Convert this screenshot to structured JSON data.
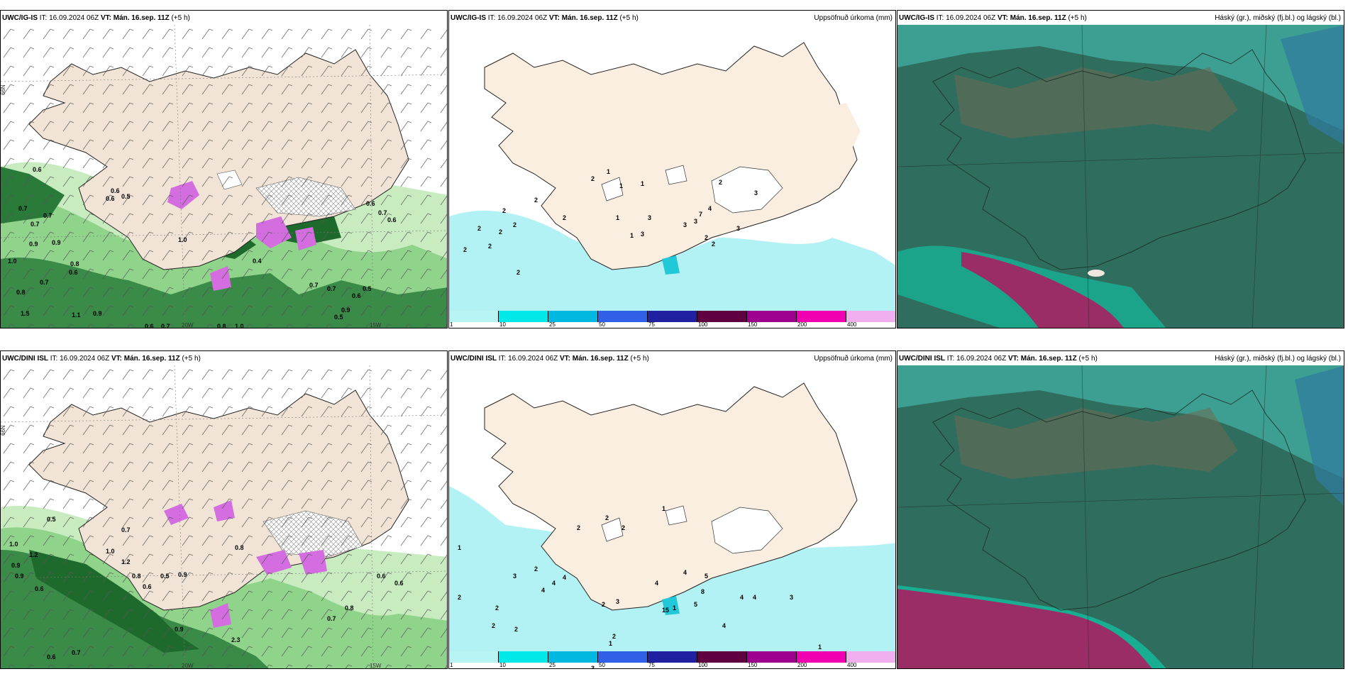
{
  "rows": [
    {
      "panels": [
        {
          "model": "UWC/IG-IS",
          "it_label": "IT:",
          "it": "16.09.2024 06Z",
          "vt_label": "VT:",
          "vt": "Mán. 16.sep. 11Z",
          "lead": "(+5 h)",
          "title": ""
        },
        {
          "model": "UWC/IG-IS",
          "it_label": "IT:",
          "it": "16.09.2024 06Z",
          "vt_label": "VT:",
          "vt": "Mán. 16.sep. 11Z",
          "lead": "(+5 h)",
          "title": "Uppsöfnuð úrkoma (mm)"
        },
        {
          "model": "UWC/IG-IS",
          "it_label": "IT:",
          "it": "16.09.2024 06Z",
          "vt_label": "VT:",
          "vt": "Mán. 16.sep. 11Z",
          "lead": "(+5 h)",
          "title": "Háský (gr.), miðský (fj.bl.) og lágský (bl.)"
        }
      ]
    },
    {
      "panels": [
        {
          "model": "UWC/DINI ISL",
          "it_label": "IT:",
          "it": "16.09.2024 06Z",
          "vt_label": "VT:",
          "vt": "Mán. 16.sep. 11Z",
          "lead": "(+5 h)",
          "title": ""
        },
        {
          "model": "UWC/DINI ISL",
          "it_label": "IT:",
          "it": "16.09.2024 06Z",
          "vt_label": "VT:",
          "vt": "Mán. 16.sep. 11Z",
          "lead": "(+5 h)",
          "title": "Uppsöfnuð úrkoma (mm)"
        },
        {
          "model": "UWC/DINI ISL",
          "it_label": "IT:",
          "it": "16.09.2024 06Z",
          "vt_label": "VT:",
          "vt": "Mán. 16.sep. 11Z",
          "lead": "(+5 h)",
          "title": "Háský (gr.), miðský (fj.bl.) og lágský (bl.)"
        }
      ]
    }
  ],
  "axis_labels": {
    "lat66": "66N",
    "lon20": "20W",
    "lon15": "15W"
  },
  "colorbar": {
    "ticks": [
      "1",
      "10",
      "25",
      "50",
      "75",
      "100",
      "150",
      "200",
      "400"
    ],
    "colors": [
      "#b8f4f4",
      "#00e8e8",
      "#00b8e0",
      "#3060e8",
      "#2020a0",
      "#600040",
      "#a00090",
      "#f000b0",
      "#f0b0f0"
    ]
  },
  "colors": {
    "land": "#f1e4d6",
    "precip_land": "#faeee0",
    "precip_sea": "#b3f2f4",
    "green_light": "#c8ecc0",
    "green_mid": "#6cc06a",
    "green_dark": "#1e6a2c",
    "magenta": "#d36de0",
    "cloud_base": "#2f6e5e",
    "cloud_teal": "#3ea89a",
    "cloud_brown": "#6b6a52",
    "cloud_pink": "#9a2c66",
    "cloud_cyan": "#10c8a8"
  },
  "labels": {
    "wind_top": [
      "0.6",
      "0.6",
      "0.6",
      "0.5",
      "0.7",
      "0.7",
      "1.0",
      "0.7",
      "0.9",
      "0.9",
      "0.8",
      "0.6",
      "0.7",
      "0.8",
      "1.0",
      "1.5",
      "1.1",
      "0.9",
      "0.6",
      "0.7",
      "0.8",
      "1.0",
      "0.9",
      "0.5",
      "0.4",
      "0.7",
      "0.6",
      "0.7",
      "0.6",
      "0.7",
      "0.6",
      "0.5"
    ],
    "precip_top": [
      "1",
      "1",
      "1",
      "2",
      "2",
      "2",
      "2",
      "2",
      "2",
      "2",
      "2",
      "3",
      "3",
      "3",
      "3",
      "2",
      "4",
      "7",
      "3",
      "1",
      "2",
      "2",
      "1",
      "2",
      "1",
      "3",
      "2"
    ],
    "wind_bottom": [
      "0.5",
      "1.0",
      "1.2",
      "0.9",
      "0.9",
      "0.6",
      "1.0",
      "1.2",
      "0.9",
      "0.8",
      "0.7",
      "0.5",
      "0.6",
      "0.8",
      "0.7",
      "0.6",
      "0.6",
      "0.6",
      "0.7",
      "2.3",
      "0.9",
      "0.8"
    ],
    "precip_bottom": [
      "1",
      "2",
      "2",
      "3",
      "2",
      "2",
      "4",
      "4",
      "4",
      "2",
      "3",
      "4",
      "5",
      "8",
      "5",
      "4",
      "4",
      "4",
      "4",
      "1",
      "3",
      "2",
      "1",
      "15",
      "1",
      "2",
      "2",
      "2",
      "2",
      "1",
      "3"
    ]
  }
}
